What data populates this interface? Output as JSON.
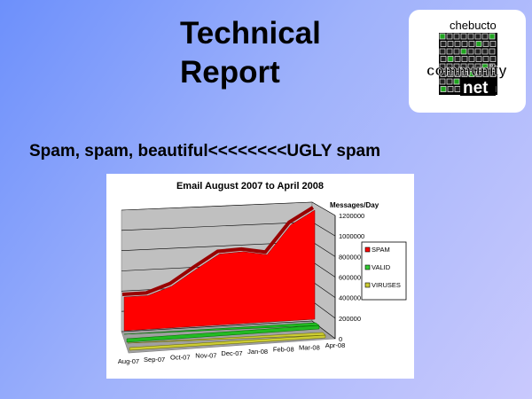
{
  "slide": {
    "title_line1": "Technical",
    "title_line2": "Report",
    "subtitle": "Spam, spam, beautiful<<<<<<<<UGLY spam",
    "logo": {
      "top_text": "chebucto",
      "middle_text": "community",
      "bottom_text": "net"
    }
  },
  "chart_data": {
    "type": "area",
    "style": "3d",
    "title": "Email August 2007 to April 2008",
    "ylabel": "Messages/Day",
    "categories": [
      "Aug-07",
      "Sep-07",
      "Oct-07",
      "Nov-07",
      "Dec-07",
      "Jan-08",
      "Feb-08",
      "Mar-08",
      "Apr-08"
    ],
    "yticks": [
      "0",
      "200000",
      "400000",
      "600000",
      "800000",
      "1000000",
      "1200000"
    ],
    "ylim": [
      0,
      1200000
    ],
    "grid": true,
    "legend_position": "right",
    "series": [
      {
        "name": "SPAM",
        "color": "#ff0000",
        "values": [
          380000,
          380000,
          470000,
          640000,
          800000,
          810000,
          760000,
          1080000,
          1230000
        ]
      },
      {
        "name": "VALID",
        "color": "#33cc33",
        "values": [
          50000,
          50000,
          50000,
          50000,
          50000,
          50000,
          50000,
          50000,
          50000
        ]
      },
      {
        "name": "VIRUSES",
        "color": "#cccc33",
        "values": [
          20000,
          20000,
          20000,
          20000,
          20000,
          20000,
          20000,
          20000,
          20000
        ]
      }
    ]
  }
}
